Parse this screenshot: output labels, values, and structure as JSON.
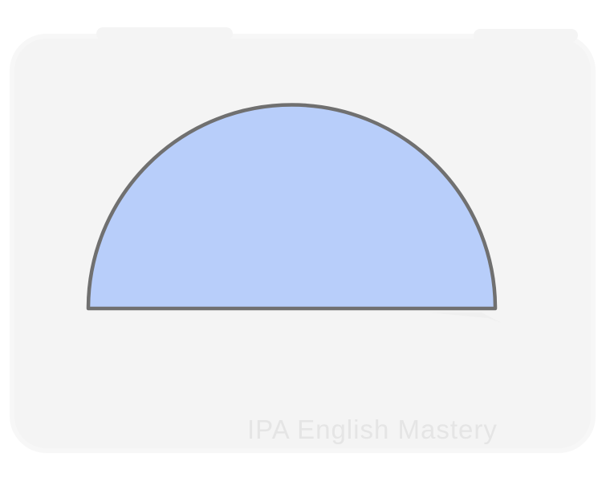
{
  "figure": {
    "shape": "semicircle",
    "fill_color": "#b8cefa",
    "stroke_color": "#707070",
    "background_color": "#f4f4f4"
  },
  "watermark": {
    "text": "IPA English Mastery",
    "color": "#e5e5e5"
  }
}
